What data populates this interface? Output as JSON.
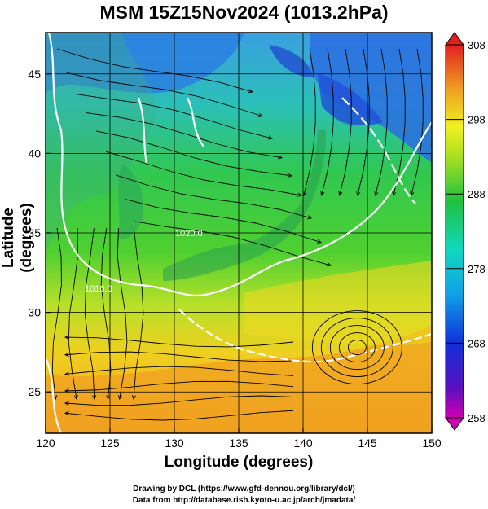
{
  "title": "MSM 15Z15Nov2024 (1013.2hPa)",
  "xlabel": "Longitude (degrees)",
  "ylabel": "Latitude  (degrees)",
  "credits": {
    "line1": "Drawing by DCL (https://www.gfd-dennou.org/library/dcl/)",
    "line2": "Data from http://database.rish.kyoto-u.ac.jp/arch/jmadata/"
  },
  "chart_data": {
    "type": "heatmap",
    "variable": "temperature with streamlines",
    "xlim": [
      120,
      150
    ],
    "ylim": [
      22.4,
      47.6
    ],
    "xticks": [
      "120",
      "125",
      "130",
      "135",
      "140",
      "145",
      "150"
    ],
    "yticks": [
      "25",
      "30",
      "35",
      "40",
      "45"
    ],
    "grid": true,
    "colorbar": {
      "range": [
        258,
        308
      ],
      "ticks": [
        "258",
        "268",
        "278",
        "288",
        "298",
        "308"
      ]
    },
    "contour_labels": [
      "1020.0",
      "1016.0"
    ],
    "cyclone_center": {
      "lon": 144.2,
      "lat": 27.8
    },
    "colors": {
      "cold": "#1f3fd6",
      "cool": "#1ea8e6",
      "mid": "#27c35a",
      "warm": "#e8e02a",
      "hot": "#f0a020",
      "contour": "#ffffff"
    }
  }
}
